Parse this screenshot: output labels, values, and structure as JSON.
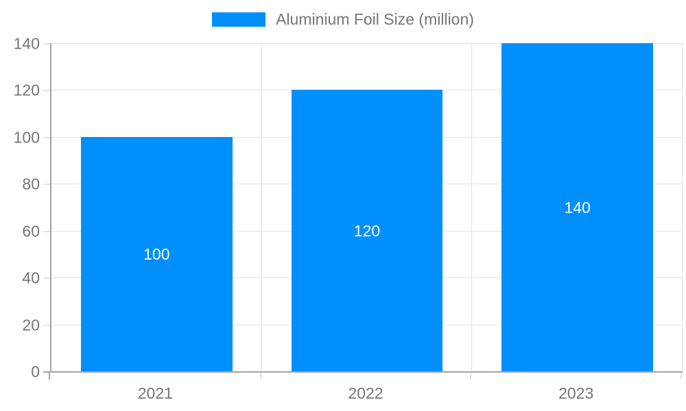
{
  "legend": {
    "label": "Aluminium Foil Size (million)",
    "swatch_color": "#008FFB"
  },
  "chart_data": {
    "type": "bar",
    "title": "",
    "xlabel": "",
    "ylabel": "",
    "categories": [
      "2021",
      "2022",
      "2023"
    ],
    "series": [
      {
        "name": "Aluminium Foil Size (million)",
        "values": [
          100,
          120,
          140
        ],
        "color": "#008FFB"
      }
    ],
    "data_labels": [
      "100",
      "120",
      "140"
    ],
    "data_label_color": "#ffffff",
    "ylim": [
      0,
      140
    ],
    "yticks": [
      0,
      20,
      40,
      60,
      80,
      100,
      120,
      140
    ],
    "grid": true,
    "legend_position": "top-center",
    "axis_line_color": "#a3a3a3",
    "gridline_color": "#e2e2e2",
    "tick_label_color": "#757575"
  }
}
